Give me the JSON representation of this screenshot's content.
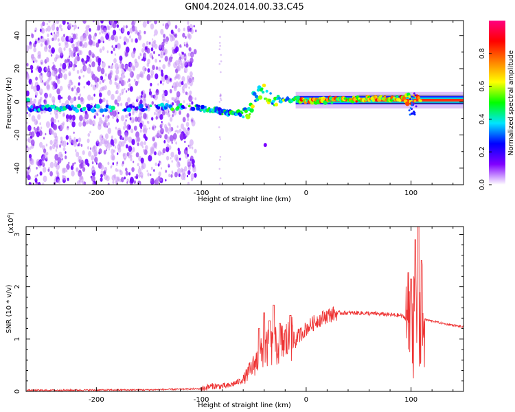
{
  "title": "GN04.2024.014.00.33.C45",
  "chart_data": [
    {
      "type": "heatmap",
      "xlabel": "Height of straight line (km)",
      "ylabel": "Frequency (Hz)",
      "xlim": [
        -267,
        150
      ],
      "ylim": [
        -50,
        49
      ],
      "xticks": [
        -200,
        -100,
        0,
        100
      ],
      "xtick_labels": [
        "-200",
        "-100",
        "0",
        "100"
      ],
      "yticks": [
        -40,
        -20,
        0,
        20,
        40
      ],
      "ytick_labels": [
        "-40",
        "-20",
        "0",
        "20",
        "40"
      ],
      "colorbar": {
        "label": "Normalized spectral amplitude",
        "range": [
          0,
          1
        ],
        "ticks": [
          0.0,
          0.2,
          0.4,
          0.6,
          0.8
        ],
        "tick_labels": [
          "0.0",
          "0.2",
          "0.4",
          "0.6",
          "0.8"
        ],
        "colors": [
          "#ffffff",
          "#8000ff",
          "#0000ff",
          "#00e5ff",
          "#00ff00",
          "#ffff00",
          "#ff8000",
          "#ff0000",
          "#ff0080"
        ]
      },
      "ridge": [
        {
          "x": -265,
          "y": -4
        },
        {
          "x": -230,
          "y": -4
        },
        {
          "x": -200,
          "y": -4
        },
        {
          "x": -170,
          "y": -4
        },
        {
          "x": -125,
          "y": -3
        },
        {
          "x": -110,
          "y": -3
        },
        {
          "x": -90,
          "y": -5
        },
        {
          "x": -70,
          "y": -7
        },
        {
          "x": -55,
          "y": -7
        },
        {
          "x": -48,
          "y": 5
        },
        {
          "x": -40,
          "y": 6
        },
        {
          "x": -30,
          "y": -1
        },
        {
          "x": -20,
          "y": 2
        },
        {
          "x": -10,
          "y": 1
        },
        {
          "x": 0,
          "y": 1
        },
        {
          "x": 30,
          "y": 1
        },
        {
          "x": 60,
          "y": 2
        },
        {
          "x": 90,
          "y": 2
        },
        {
          "x": 105,
          "y": 1
        },
        {
          "x": 150,
          "y": 1
        }
      ]
    },
    {
      "type": "line",
      "xlabel": "Height of straight line (km)",
      "ylabel": "SNR (10 * v/v)",
      "multiplier": "(x10",
      "multiplier_exp": "4",
      "multiplier_close": ")",
      "xlim": [
        -267,
        150
      ],
      "ylim": [
        0,
        3.15
      ],
      "xticks": [
        -200,
        -100,
        0,
        100
      ],
      "xtick_labels": [
        "-200",
        "-100",
        "0",
        "100"
      ],
      "yticks": [
        0,
        1,
        2,
        3
      ],
      "ytick_labels": [
        "0",
        "1",
        "2",
        "3"
      ],
      "color": "#ee3333",
      "envelope": [
        {
          "x": -267,
          "y": 0.02
        },
        {
          "x": -150,
          "y": 0.03
        },
        {
          "x": -100,
          "y": 0.05
        },
        {
          "x": -90,
          "y": 0.1
        },
        {
          "x": -75,
          "y": 0.1
        },
        {
          "x": -60,
          "y": 0.22
        },
        {
          "x": -50,
          "y": 0.5
        },
        {
          "x": -40,
          "y": 0.8
        },
        {
          "x": -30,
          "y": 0.85
        },
        {
          "x": -20,
          "y": 0.95
        },
        {
          "x": -10,
          "y": 1.0
        },
        {
          "x": 0,
          "y": 1.2
        },
        {
          "x": 10,
          "y": 1.35
        },
        {
          "x": 20,
          "y": 1.45
        },
        {
          "x": 30,
          "y": 1.5
        },
        {
          "x": 50,
          "y": 1.5
        },
        {
          "x": 70,
          "y": 1.48
        },
        {
          "x": 90,
          "y": 1.45
        },
        {
          "x": 105,
          "y": 1.3
        },
        {
          "x": 112,
          "y": 1.38
        },
        {
          "x": 130,
          "y": 1.3
        },
        {
          "x": 150,
          "y": 1.23
        }
      ],
      "spikes": [
        {
          "x": -45,
          "y": 1.2
        },
        {
          "x": -40,
          "y": 1.5
        },
        {
          "x": -35,
          "y": 1.35
        },
        {
          "x": -31,
          "y": 1.65
        },
        {
          "x": -25,
          "y": 1.3
        },
        {
          "x": -15,
          "y": 1.45
        },
        {
          "x": 100,
          "y": 2.15
        },
        {
          "x": 104,
          "y": 2.9
        },
        {
          "x": 107,
          "y": 3.15
        },
        {
          "x": 110,
          "y": 2.5
        }
      ]
    }
  ]
}
